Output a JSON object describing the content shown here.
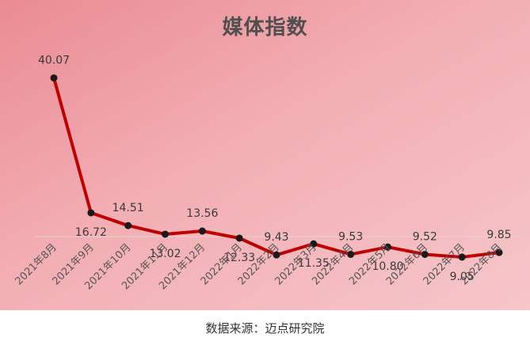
{
  "chart_data": {
    "type": "line",
    "title": "媒体指数",
    "categories": [
      "2021年8月",
      "2021年9月",
      "2021年10月",
      "2021年11月",
      "2021年12月",
      "2022年1月",
      "2022年2月",
      "2022年3月",
      "2022年4月",
      "2022年5月",
      "2022年6月",
      "2022年7月",
      "2022年8月"
    ],
    "values": [
      40.07,
      16.72,
      14.51,
      13.02,
      13.56,
      12.33,
      9.43,
      11.35,
      9.53,
      10.8,
      9.52,
      9.05,
      9.85
    ],
    "value_labels": [
      "40.07",
      "16.72",
      "14.51",
      "13.02",
      "13.56",
      "12.33",
      "9.43",
      "11.35",
      "9.53",
      "10.80",
      "9.52",
      "9.05",
      "9.85"
    ],
    "xlabel": "",
    "ylabel": "",
    "ylim": [
      0,
      45
    ],
    "grid": false,
    "legend": "none",
    "line_color": "#c00000",
    "marker_color": "#1a1a1a"
  },
  "source_note": "数据来源：迈点研究院"
}
